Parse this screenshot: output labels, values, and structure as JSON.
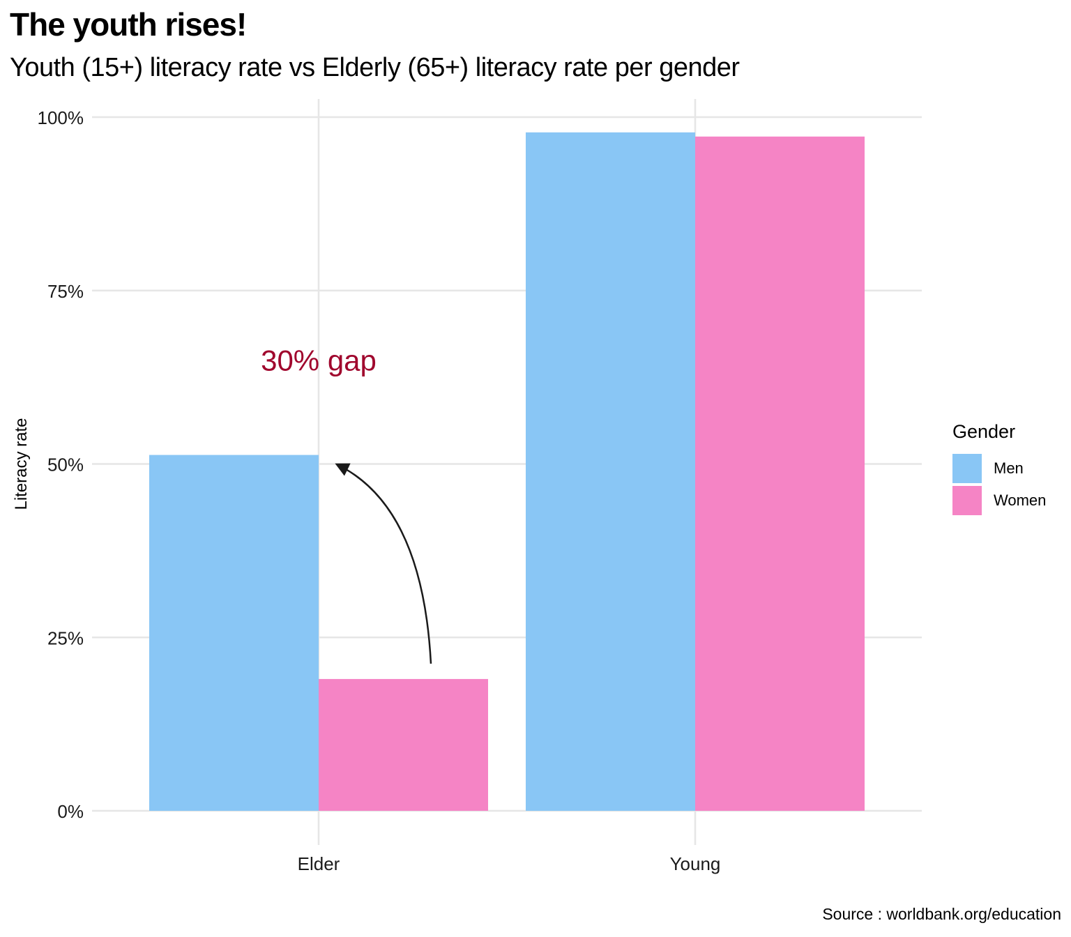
{
  "title": "The youth rises!",
  "subtitle": "Youth (15+) literacy rate vs Elderly (65+) literacy rate per gender",
  "caption": "Source : worldbank.org/education",
  "colors": {
    "Men": "#89c6f5",
    "Women": "#f584c5",
    "annotation": "#a0062d",
    "grid": "#e6e6e6"
  },
  "legend": {
    "title": "Gender",
    "items": [
      "Men",
      "Women"
    ]
  },
  "chart_data": {
    "type": "bar",
    "categories": [
      "Elder",
      "Young"
    ],
    "series": [
      {
        "name": "Men",
        "values": [
          51.3,
          97.8
        ]
      },
      {
        "name": "Women",
        "values": [
          19.0,
          97.2
        ]
      }
    ],
    "xlabel": "",
    "ylabel": "Literacy rate",
    "ylim": [
      0,
      100
    ],
    "yticks": [
      "0%",
      "25%",
      "50%",
      "75%",
      "100%"
    ],
    "annotation": {
      "text": "30% gap",
      "category": "Elder",
      "value": 65
    },
    "grid": true,
    "legend_position": "right"
  }
}
